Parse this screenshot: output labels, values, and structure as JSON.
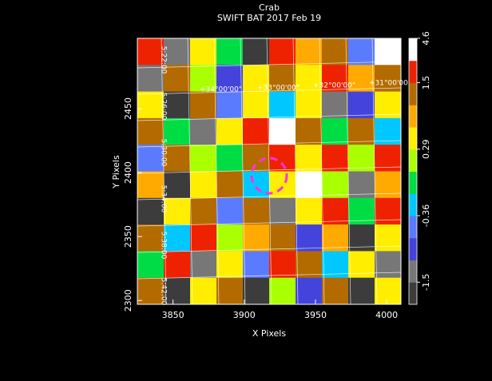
{
  "chart_data": {
    "type": "heatmap",
    "title": "Crab",
    "subtitle": "SWIFT BAT   2017 Feb 19",
    "x_label": "X Pixels",
    "y_label": "Y Pixels",
    "xlim": [
      3825,
      4010
    ],
    "ylim": [
      2297,
      2505
    ],
    "xticks": [
      3850,
      3900,
      3950,
      4000
    ],
    "yticks": [
      2300,
      2350,
      2400,
      2450
    ],
    "values": [
      [
        1.8,
        -1.2,
        0.3,
        0.0,
        -1.8,
        2.0,
        0.7,
        1.2,
        -0.5,
        4.0
      ],
      [
        -1.0,
        1.0,
        0.2,
        -0.8,
        0.5,
        1.2,
        0.3,
        1.8,
        0.8,
        1.2
      ],
      [
        0.4,
        -1.9,
        1.2,
        -0.4,
        0.6,
        -0.2,
        0.3,
        -1.3,
        -0.6,
        0.4
      ],
      [
        1.0,
        0.1,
        -1.2,
        0.5,
        2.5,
        4.2,
        1.3,
        0.0,
        1.0,
        -0.3
      ],
      [
        -0.5,
        1.3,
        0.2,
        0.0,
        1.5,
        2.0,
        0.5,
        1.6,
        0.2,
        2.0
      ],
      [
        0.8,
        -1.6,
        0.4,
        1.3,
        -0.3,
        0.6,
        4.5,
        0.2,
        -1.0,
        0.7
      ],
      [
        -1.8,
        0.5,
        1.0,
        -0.5,
        1.2,
        -1.4,
        0.4,
        1.6,
        0.1,
        3.0
      ],
      [
        1.2,
        -0.2,
        2.5,
        0.2,
        0.8,
        1.0,
        -0.8,
        0.9,
        -1.9,
        0.3
      ],
      [
        0.0,
        1.6,
        -1.3,
        0.6,
        -0.4,
        1.8,
        1.2,
        -0.1,
        0.5,
        -1.2
      ],
      [
        1.0,
        -1.9,
        0.3,
        1.4,
        -1.6,
        0.2,
        -0.6,
        1.3,
        -2.0,
        0.4
      ]
    ],
    "colorbar": {
      "bounds": [
        -2.2,
        -1.5,
        -1.0,
        -0.6,
        -0.36,
        -0.1,
        0.1,
        0.29,
        0.6,
        0.9,
        1.5,
        3.0,
        4.6
      ],
      "colors": [
        "#3c3c3c",
        "#777777",
        "#4444dd",
        "#5b7bff",
        "#00c8ff",
        "#00dd44",
        "#aaff00",
        "#ffee00",
        "#ffaa00",
        "#b36b00",
        "#ee2200",
        "#ffffff"
      ],
      "ticks": [
        -1.5,
        -0.36,
        0.29,
        1.5,
        4.6
      ]
    },
    "dec_labels": [
      "+34°00'00\"",
      "+33°00'00\"",
      "+32°00'00\"",
      "+31°00'00\""
    ],
    "ra_labels": [
      "5:22:00",
      "5:26:00",
      "5:30:00",
      "5:34:00",
      "5:38:00",
      "5:42:00"
    ]
  }
}
